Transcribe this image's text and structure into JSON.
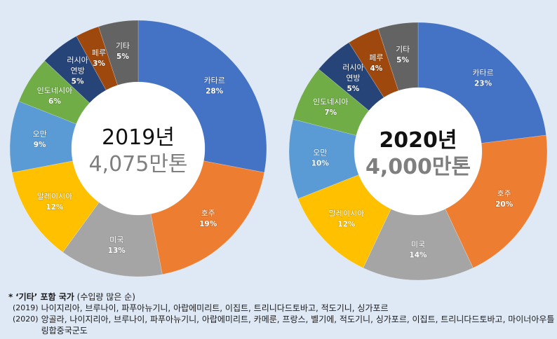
{
  "chart_data": [
    {
      "type": "pie",
      "variant": "donut",
      "title": "2019년",
      "center_year": "2019년",
      "center_amount": "4,075만톤",
      "center_bold": false,
      "start": "top, clockwise",
      "slices": [
        {
          "label": "카타르",
          "value": 28,
          "pct": "28%",
          "color": "#4472c4"
        },
        {
          "label": "호주",
          "value": 19,
          "pct": "19%",
          "color": "#ed7d31"
        },
        {
          "label": "미국",
          "value": 13,
          "pct": "13%",
          "color": "#a5a5a5"
        },
        {
          "label": "말레이시아",
          "value": 12,
          "pct": "12%",
          "color": "#ffc000"
        },
        {
          "label": "오만",
          "value": 9,
          "pct": "9%",
          "color": "#5b9bd5"
        },
        {
          "label": "인도네시아",
          "value": 6,
          "pct": "6%",
          "color": "#70ad47"
        },
        {
          "label": "러시아 연방",
          "value": 5,
          "pct": "5%",
          "color": "#264478"
        },
        {
          "label": "페루",
          "value": 3,
          "pct": "3%",
          "color": "#9e480e"
        },
        {
          "label": "기타",
          "value": 5,
          "pct": "5%",
          "color": "#636363"
        }
      ]
    },
    {
      "type": "pie",
      "variant": "donut",
      "title": "2020년",
      "center_year": "2020년",
      "center_amount": "4,000만톤",
      "center_bold": true,
      "start": "top, clockwise",
      "slices": [
        {
          "label": "카타르",
          "value": 23,
          "pct": "23%",
          "color": "#4472c4"
        },
        {
          "label": "호주",
          "value": 20,
          "pct": "20%",
          "color": "#ed7d31"
        },
        {
          "label": "미국",
          "value": 14,
          "pct": "14%",
          "color": "#a5a5a5"
        },
        {
          "label": "말레이시아",
          "value": 12,
          "pct": "12%",
          "color": "#ffc000"
        },
        {
          "label": "오만",
          "value": 10,
          "pct": "10%",
          "color": "#5b9bd5"
        },
        {
          "label": "인도네시아",
          "value": 7,
          "pct": "7%",
          "color": "#70ad47"
        },
        {
          "label": "러시아 연방",
          "value": 5,
          "pct": "5%",
          "color": "#264478"
        },
        {
          "label": "페루",
          "value": 4,
          "pct": "4%",
          "color": "#9e480e"
        },
        {
          "label": "기타",
          "value": 5,
          "pct": "5%",
          "color": "#636363"
        }
      ]
    }
  ],
  "footnote": {
    "bullet": "*",
    "title": "‘기타’ 포함 국가",
    "subtitle": "(수입량 많은 순)",
    "rows": [
      {
        "year": "(2019)",
        "countries": "나이지리아, 브루나이, 파푸아뉴기니, 아랍에미리트, 이집트, 트리니다드토바고, 적도기니, 싱가포르"
      },
      {
        "year": "(2020)",
        "countries": "앙골라, 나이지리아, 브루나이, 파푸아뉴기니, 아랍에미리트, 카메룬, 프랑스, 벨기에, 적도기니, 싱가포르, 이집트, 트리니다드토바고, 마이너아우틀링합중국군도"
      }
    ]
  }
}
